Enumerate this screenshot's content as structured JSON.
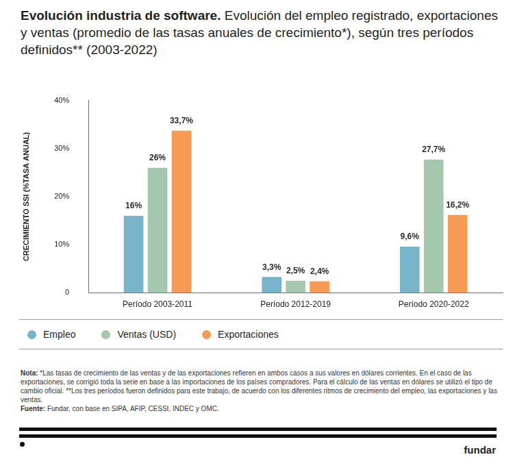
{
  "chart_data": {
    "type": "bar",
    "title": "Evolución industria de software.",
    "subtitle": "Evolución del empleo registrado, exportaciones y ventas (promedio de las tasas anuales de crecimiento*), según tres períodos definidos** (2003-2022)",
    "y_label": "CRECIMIENTO SSI (%TASA ANUAL)",
    "categories": [
      "Período 2003-2011",
      "Período 2012-2019",
      "Período 2020-2022"
    ],
    "series": [
      {
        "name": "Empleo",
        "color": "#78b4c9",
        "values": [
          16,
          3.3,
          9.6
        ],
        "value_labels": [
          "16%",
          "3,3%",
          "9,6%"
        ]
      },
      {
        "name": "Ventas (USD)",
        "color": "#a4c8ad",
        "values": [
          26,
          2.5,
          27.7
        ],
        "value_labels": [
          "26%",
          "2,5%",
          "27,7%"
        ]
      },
      {
        "name": "Exportaciones",
        "color": "#f69a55",
        "values": [
          33.7,
          2.4,
          16.2
        ],
        "value_labels": [
          "33,7%",
          "2,4%",
          "16,2%"
        ]
      }
    ],
    "ylim": [
      0,
      40
    ],
    "yticks": [
      0,
      {
        "value": 10,
        "label": "10%"
      },
      {
        "value": 20,
        "label": "20%"
      },
      {
        "value": 30,
        "label": "30%"
      },
      {
        "value": 40,
        "label": "40%"
      }
    ],
    "grid": false,
    "legend": "bottom",
    "data_labels": true,
    "note_label": "Nota:",
    "note": "*Las tasas de crecimiento de las ventas y de las exportaciones refieren en ambos casos a sus valores en dólares corrientes. En el caso de las exportaciones, se corrigió toda la serie en base a las importaciones de los países compradores. Para el cálculo de las ventas en dólares se utilizó el tipo de cambio oficial. **Los tres períodos fueron definidos para este trabajo, de acuerdo con los diferentes ritmos de crecimiento del empleo, las exportaciones y las ventas.",
    "source_label": "Fuente:",
    "source": "Fundar, con base en SIPA, AFIP, CESSI, INDEC y OMC.",
    "brand": "fundar"
  }
}
